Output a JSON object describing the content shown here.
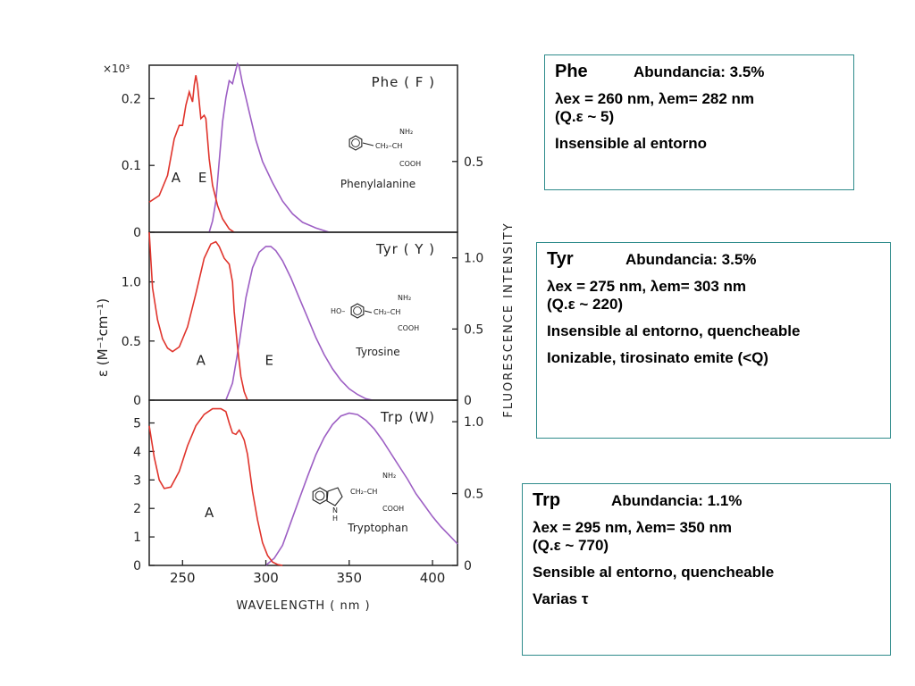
{
  "chart_data": {
    "type": "line",
    "xlabel": "WAVELENGTH  ( nm )",
    "ylabel_left": "ε (M⁻¹cm⁻¹)",
    "ylabel_right": "FLUORESCENCE  INTENSITY",
    "xlim": [
      230,
      415
    ],
    "xticks": [
      250,
      300,
      350,
      400
    ],
    "panels": [
      {
        "label": "Phe ( F )",
        "compound": "Phenylalanine",
        "left_scale_label": "×10³",
        "left_ylim": [
          0,
          0.25
        ],
        "left_ticks": [
          {
            "value": 0,
            "label": "0"
          },
          {
            "value": 0.1,
            "label": "0.1"
          },
          {
            "value": 0.2,
            "label": "0.2"
          }
        ],
        "right_ylim": [
          0,
          1.18
        ],
        "right_ticks": [
          {
            "value": 0.5,
            "label": "0.5"
          }
        ],
        "curve_labels": [
          {
            "text": "A",
            "x": 246,
            "y": 0.075
          },
          {
            "text": "E",
            "x": 262,
            "y": 0.075
          }
        ],
        "absorption": {
          "name": "A",
          "points": [
            [
              230,
              0.045
            ],
            [
              236,
              0.055
            ],
            [
              241,
              0.085
            ],
            [
              245,
              0.14
            ],
            [
              248,
              0.16
            ],
            [
              250,
              0.16
            ],
            [
              252,
              0.19
            ],
            [
              254,
              0.21
            ],
            [
              256,
              0.195
            ],
            [
              257,
              0.22
            ],
            [
              258,
              0.235
            ],
            [
              259,
              0.22
            ],
            [
              261,
              0.17
            ],
            [
              263,
              0.175
            ],
            [
              264,
              0.17
            ],
            [
              266,
              0.11
            ],
            [
              268,
              0.07
            ],
            [
              271,
              0.04
            ],
            [
              274,
              0.02
            ],
            [
              278,
              0.005
            ],
            [
              281,
              0.0
            ]
          ]
        },
        "emission": {
          "name": "E",
          "points": [
            [
              266,
              0.0
            ],
            [
              268,
              0.08
            ],
            [
              270,
              0.22
            ],
            [
              272,
              0.5
            ],
            [
              274,
              0.78
            ],
            [
              276,
              0.95
            ],
            [
              278,
              1.07
            ],
            [
              280,
              1.05
            ],
            [
              282,
              1.15
            ],
            [
              283,
              1.19
            ],
            [
              284,
              1.17
            ],
            [
              286,
              1.05
            ],
            [
              288,
              0.95
            ],
            [
              290,
              0.85
            ],
            [
              294,
              0.65
            ],
            [
              298,
              0.5
            ],
            [
              304,
              0.35
            ],
            [
              310,
              0.22
            ],
            [
              316,
              0.13
            ],
            [
              322,
              0.07
            ],
            [
              330,
              0.03
            ],
            [
              338,
              0.0
            ]
          ]
        }
      },
      {
        "label": "Tyr ( Y )",
        "compound": "Tyrosine",
        "left_scale_label": "",
        "left_ylim": [
          0,
          1.42
        ],
        "left_ticks": [
          {
            "value": 0,
            "label": "0"
          },
          {
            "value": 0.5,
            "label": "0.5"
          },
          {
            "value": 1.0,
            "label": "1.0"
          }
        ],
        "right_ylim": [
          0,
          1.18
        ],
        "right_ticks": [
          {
            "value": 0,
            "label": "0"
          },
          {
            "value": 0.5,
            "label": "0.5"
          },
          {
            "value": 1.0,
            "label": "1.0"
          }
        ],
        "curve_labels": [
          {
            "text": "A",
            "x": 261,
            "y": 0.3
          },
          {
            "text": "E",
            "x": 302,
            "y": 0.3
          }
        ],
        "absorption": {
          "name": "A",
          "points": [
            [
              230,
              1.42
            ],
            [
              232,
              0.95
            ],
            [
              235,
              0.68
            ],
            [
              238,
              0.52
            ],
            [
              241,
              0.44
            ],
            [
              244,
              0.41
            ],
            [
              248,
              0.45
            ],
            [
              253,
              0.62
            ],
            [
              258,
              0.9
            ],
            [
              263,
              1.2
            ],
            [
              267,
              1.32
            ],
            [
              270,
              1.34
            ],
            [
              272,
              1.3
            ],
            [
              275,
              1.2
            ],
            [
              278,
              1.15
            ],
            [
              280,
              1.0
            ],
            [
              281,
              0.75
            ],
            [
              283,
              0.45
            ],
            [
              285,
              0.2
            ],
            [
              287,
              0.07
            ],
            [
              289,
              0.0
            ]
          ]
        },
        "emission": {
          "name": "E",
          "points": [
            [
              276,
              0.0
            ],
            [
              280,
              0.12
            ],
            [
              284,
              0.4
            ],
            [
              288,
              0.72
            ],
            [
              292,
              0.93
            ],
            [
              296,
              1.04
            ],
            [
              300,
              1.08
            ],
            [
              303,
              1.08
            ],
            [
              306,
              1.05
            ],
            [
              310,
              0.98
            ],
            [
              315,
              0.86
            ],
            [
              320,
              0.72
            ],
            [
              325,
              0.58
            ],
            [
              330,
              0.44
            ],
            [
              335,
              0.32
            ],
            [
              340,
              0.22
            ],
            [
              345,
              0.14
            ],
            [
              350,
              0.08
            ],
            [
              355,
              0.04
            ],
            [
              360,
              0.01
            ],
            [
              364,
              0.0
            ]
          ]
        }
      },
      {
        "label": "Trp (W)",
        "compound": "Tryptophan",
        "left_scale_label": "",
        "left_ylim": [
          0,
          5.8
        ],
        "left_ticks": [
          {
            "value": 0,
            "label": "0"
          },
          {
            "value": 1,
            "label": "1"
          },
          {
            "value": 2,
            "label": "2"
          },
          {
            "value": 3,
            "label": "3"
          },
          {
            "value": 4,
            "label": "4"
          },
          {
            "value": 5,
            "label": "5"
          }
        ],
        "right_ylim": [
          0,
          1.15
        ],
        "right_ticks": [
          {
            "value": 0,
            "label": "0"
          },
          {
            "value": 0.5,
            "label": "0.5"
          },
          {
            "value": 1.0,
            "label": "1.0"
          }
        ],
        "curve_labels": [
          {
            "text": "A",
            "x": 266,
            "y": 1.7
          }
        ],
        "absorption": {
          "name": "A",
          "points": [
            [
              230,
              4.9
            ],
            [
              233,
              3.8
            ],
            [
              236,
              3.0
            ],
            [
              239,
              2.7
            ],
            [
              243,
              2.75
            ],
            [
              248,
              3.3
            ],
            [
              253,
              4.2
            ],
            [
              258,
              4.9
            ],
            [
              263,
              5.3
            ],
            [
              268,
              5.5
            ],
            [
              273,
              5.5
            ],
            [
              276,
              5.4
            ],
            [
              278,
              5.0
            ],
            [
              280,
              4.65
            ],
            [
              282,
              4.6
            ],
            [
              284,
              4.75
            ],
            [
              285,
              4.65
            ],
            [
              287,
              4.4
            ],
            [
              289,
              3.9
            ],
            [
              292,
              2.6
            ],
            [
              295,
              1.6
            ],
            [
              298,
              0.8
            ],
            [
              301,
              0.35
            ],
            [
              304,
              0.12
            ],
            [
              307,
              0.03
            ],
            [
              310,
              0.0
            ]
          ]
        },
        "emission": {
          "name": "E",
          "points": [
            [
              300,
              0.0
            ],
            [
              305,
              0.05
            ],
            [
              310,
              0.14
            ],
            [
              315,
              0.3
            ],
            [
              320,
              0.46
            ],
            [
              325,
              0.62
            ],
            [
              330,
              0.77
            ],
            [
              335,
              0.89
            ],
            [
              340,
              0.98
            ],
            [
              345,
              1.04
            ],
            [
              350,
              1.06
            ],
            [
              355,
              1.05
            ],
            [
              360,
              1.01
            ],
            [
              365,
              0.95
            ],
            [
              370,
              0.87
            ],
            [
              375,
              0.78
            ],
            [
              380,
              0.69
            ],
            [
              385,
              0.6
            ],
            [
              390,
              0.5
            ],
            [
              395,
              0.42
            ],
            [
              400,
              0.34
            ],
            [
              405,
              0.27
            ],
            [
              410,
              0.21
            ],
            [
              415,
              0.15
            ]
          ]
        }
      }
    ],
    "colors": {
      "absorption": "#e0342c",
      "emission": "#9d5fc4",
      "axes": "#222222"
    }
  },
  "info_boxes": [
    {
      "name": "Phe",
      "abundance": "Abundancia:  3.5%",
      "lines": [
        "λex = 260 nm, λem= 282 nm",
        "(Q.ε ~ 5)",
        "Insensible al entorno"
      ]
    },
    {
      "name": "Tyr",
      "abundance": "Abundancia:  3.5%",
      "lines": [
        "λex = 275 nm, λem= 303 nm",
        "(Q.ε ~ 220)",
        "Insensible al entorno, quencheable",
        "Ionizable, tirosinato emite (<Q)"
      ]
    },
    {
      "name": "Trp",
      "abundance": "Abundancia:  1.1%",
      "lines": [
        "λex = 295 nm, λem= 350 nm",
        "(Q.ε ~ 770)",
        "Sensible al entorno, quencheable",
        "Varias τ"
      ]
    }
  ]
}
